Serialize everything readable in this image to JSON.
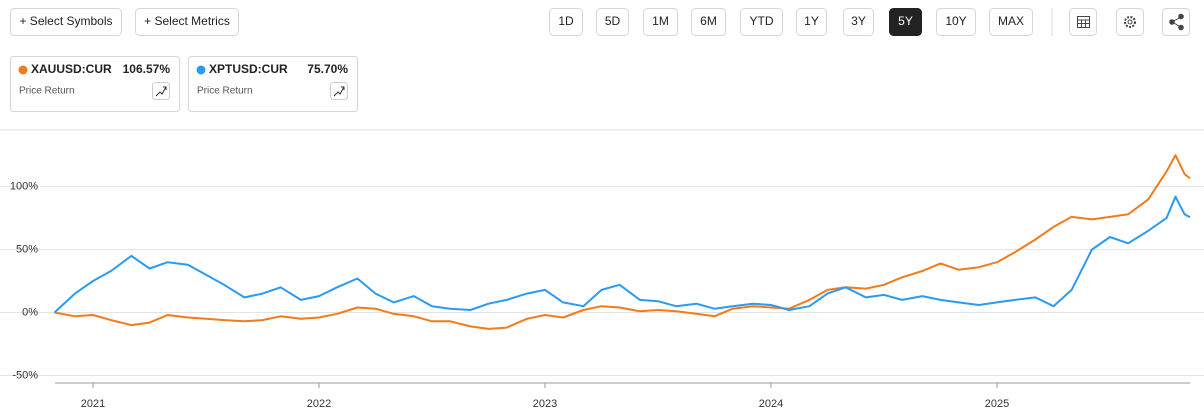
{
  "toolbar": {
    "symbols_button": "+ Select Symbols",
    "metrics_button": "+ Select Metrics",
    "periods": [
      "1D",
      "5D",
      "1M",
      "6M",
      "YTD",
      "1Y",
      "3Y",
      "5Y",
      "10Y",
      "MAX"
    ],
    "selected_period": "5Y"
  },
  "chart_data": {
    "type": "line",
    "x": [
      2020.83,
      2020.92,
      2021.0,
      2021.08,
      2021.17,
      2021.25,
      2021.33,
      2021.42,
      2021.5,
      2021.58,
      2021.67,
      2021.75,
      2021.83,
      2021.92,
      2022.0,
      2022.08,
      2022.17,
      2022.25,
      2022.33,
      2022.42,
      2022.5,
      2022.58,
      2022.67,
      2022.75,
      2022.83,
      2022.92,
      2023.0,
      2023.08,
      2023.17,
      2023.25,
      2023.33,
      2023.42,
      2023.5,
      2023.58,
      2023.67,
      2023.75,
      2023.83,
      2023.92,
      2024.0,
      2024.08,
      2024.17,
      2024.25,
      2024.33,
      2024.42,
      2024.5,
      2024.58,
      2024.67,
      2024.75,
      2024.83,
      2024.92,
      2025.0,
      2025.08,
      2025.17,
      2025.25,
      2025.33,
      2025.42,
      2025.5,
      2025.58,
      2025.67,
      2025.75,
      2025.79,
      2025.83,
      2025.854
    ],
    "series": [
      {
        "name": "XAUUSD:CUR",
        "color": "#f27b1a",
        "metric": "Price Return",
        "total_return": 106.57,
        "total_return_label": "106.57%",
        "values": [
          0,
          -3,
          -2,
          -6,
          -10,
          -8,
          -2,
          -4,
          -5,
          -6,
          -7,
          -6,
          -3,
          -5,
          -4,
          -1,
          4,
          3,
          -1,
          -3,
          -7,
          -7,
          -11,
          -13,
          -12,
          -5,
          -2,
          -4,
          2,
          5,
          4,
          1,
          2,
          1,
          -1,
          -3,
          3,
          5,
          4,
          3,
          10,
          18,
          20,
          19,
          22,
          28,
          33,
          39,
          34,
          36,
          40,
          48,
          58,
          68,
          76,
          74,
          76,
          78,
          90,
          112,
          125,
          110,
          106.57
        ]
      },
      {
        "name": "XPTUSD:CUR",
        "color": "#2b9af3",
        "metric": "Price Return",
        "total_return": 75.7,
        "total_return_label": "75.70%",
        "values": [
          0,
          15,
          25,
          33,
          45,
          35,
          40,
          38,
          30,
          22,
          12,
          15,
          20,
          10,
          13,
          20,
          27,
          15,
          8,
          13,
          5,
          3,
          2,
          7,
          10,
          15,
          18,
          8,
          5,
          18,
          22,
          10,
          9,
          5,
          7,
          3,
          5,
          7,
          6,
          2,
          5,
          15,
          20,
          12,
          14,
          10,
          13,
          10,
          8,
          6,
          8,
          10,
          12,
          5,
          18,
          50,
          60,
          55,
          65,
          75,
          92,
          78,
          75.7
        ]
      }
    ],
    "xlim": [
      2020.832,
      2025.854
    ],
    "xticks": [
      2021,
      2022,
      2023,
      2024,
      2025
    ],
    "ylim": [
      -56,
      145
    ],
    "yticks": [
      {
        "value": -50,
        "label": "-50%"
      },
      {
        "value": 0,
        "label": "0%"
      },
      {
        "value": 50,
        "label": "50%"
      },
      {
        "value": 100,
        "label": "100%"
      }
    ],
    "grid": true
  }
}
